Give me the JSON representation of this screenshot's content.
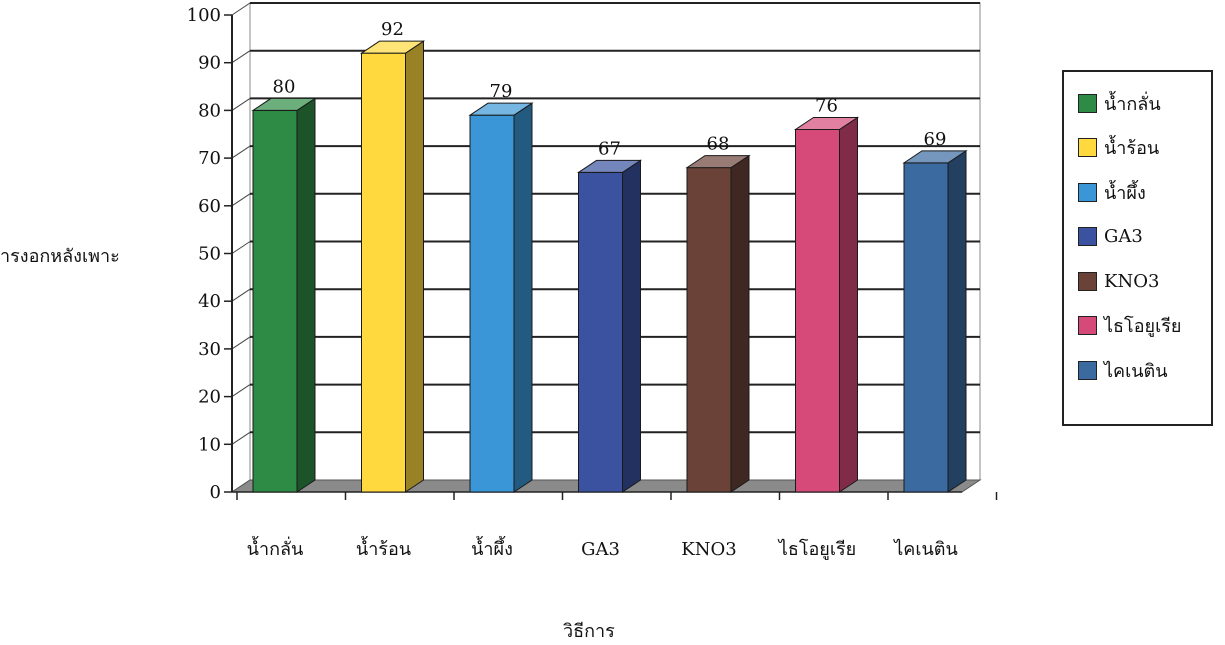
{
  "chart_data": {
    "type": "bar",
    "categories": [
      "น้ำกลั่น",
      "น้ำร้อน",
      "น้ำผึ้ง",
      "GA3",
      "KNO3",
      "ไธโอยูเรีย",
      "ไคเนติน"
    ],
    "values": [
      80,
      92,
      79,
      67,
      68,
      76,
      69
    ],
    "xlabel": "วิธีการ",
    "ylabel": "ารงอกหลังเพาะ",
    "ylim": [
      0,
      100
    ],
    "yticks": [
      0,
      10,
      20,
      30,
      40,
      50,
      60,
      70,
      80,
      90,
      100
    ],
    "grid": true,
    "legend_position": "right",
    "bar_style": "3d",
    "colors": [
      "#2e8b45",
      "#ffd93d",
      "#3a96d6",
      "#3a52a0",
      "#6b4238",
      "#d64a7a",
      "#3a6aa0"
    ]
  }
}
